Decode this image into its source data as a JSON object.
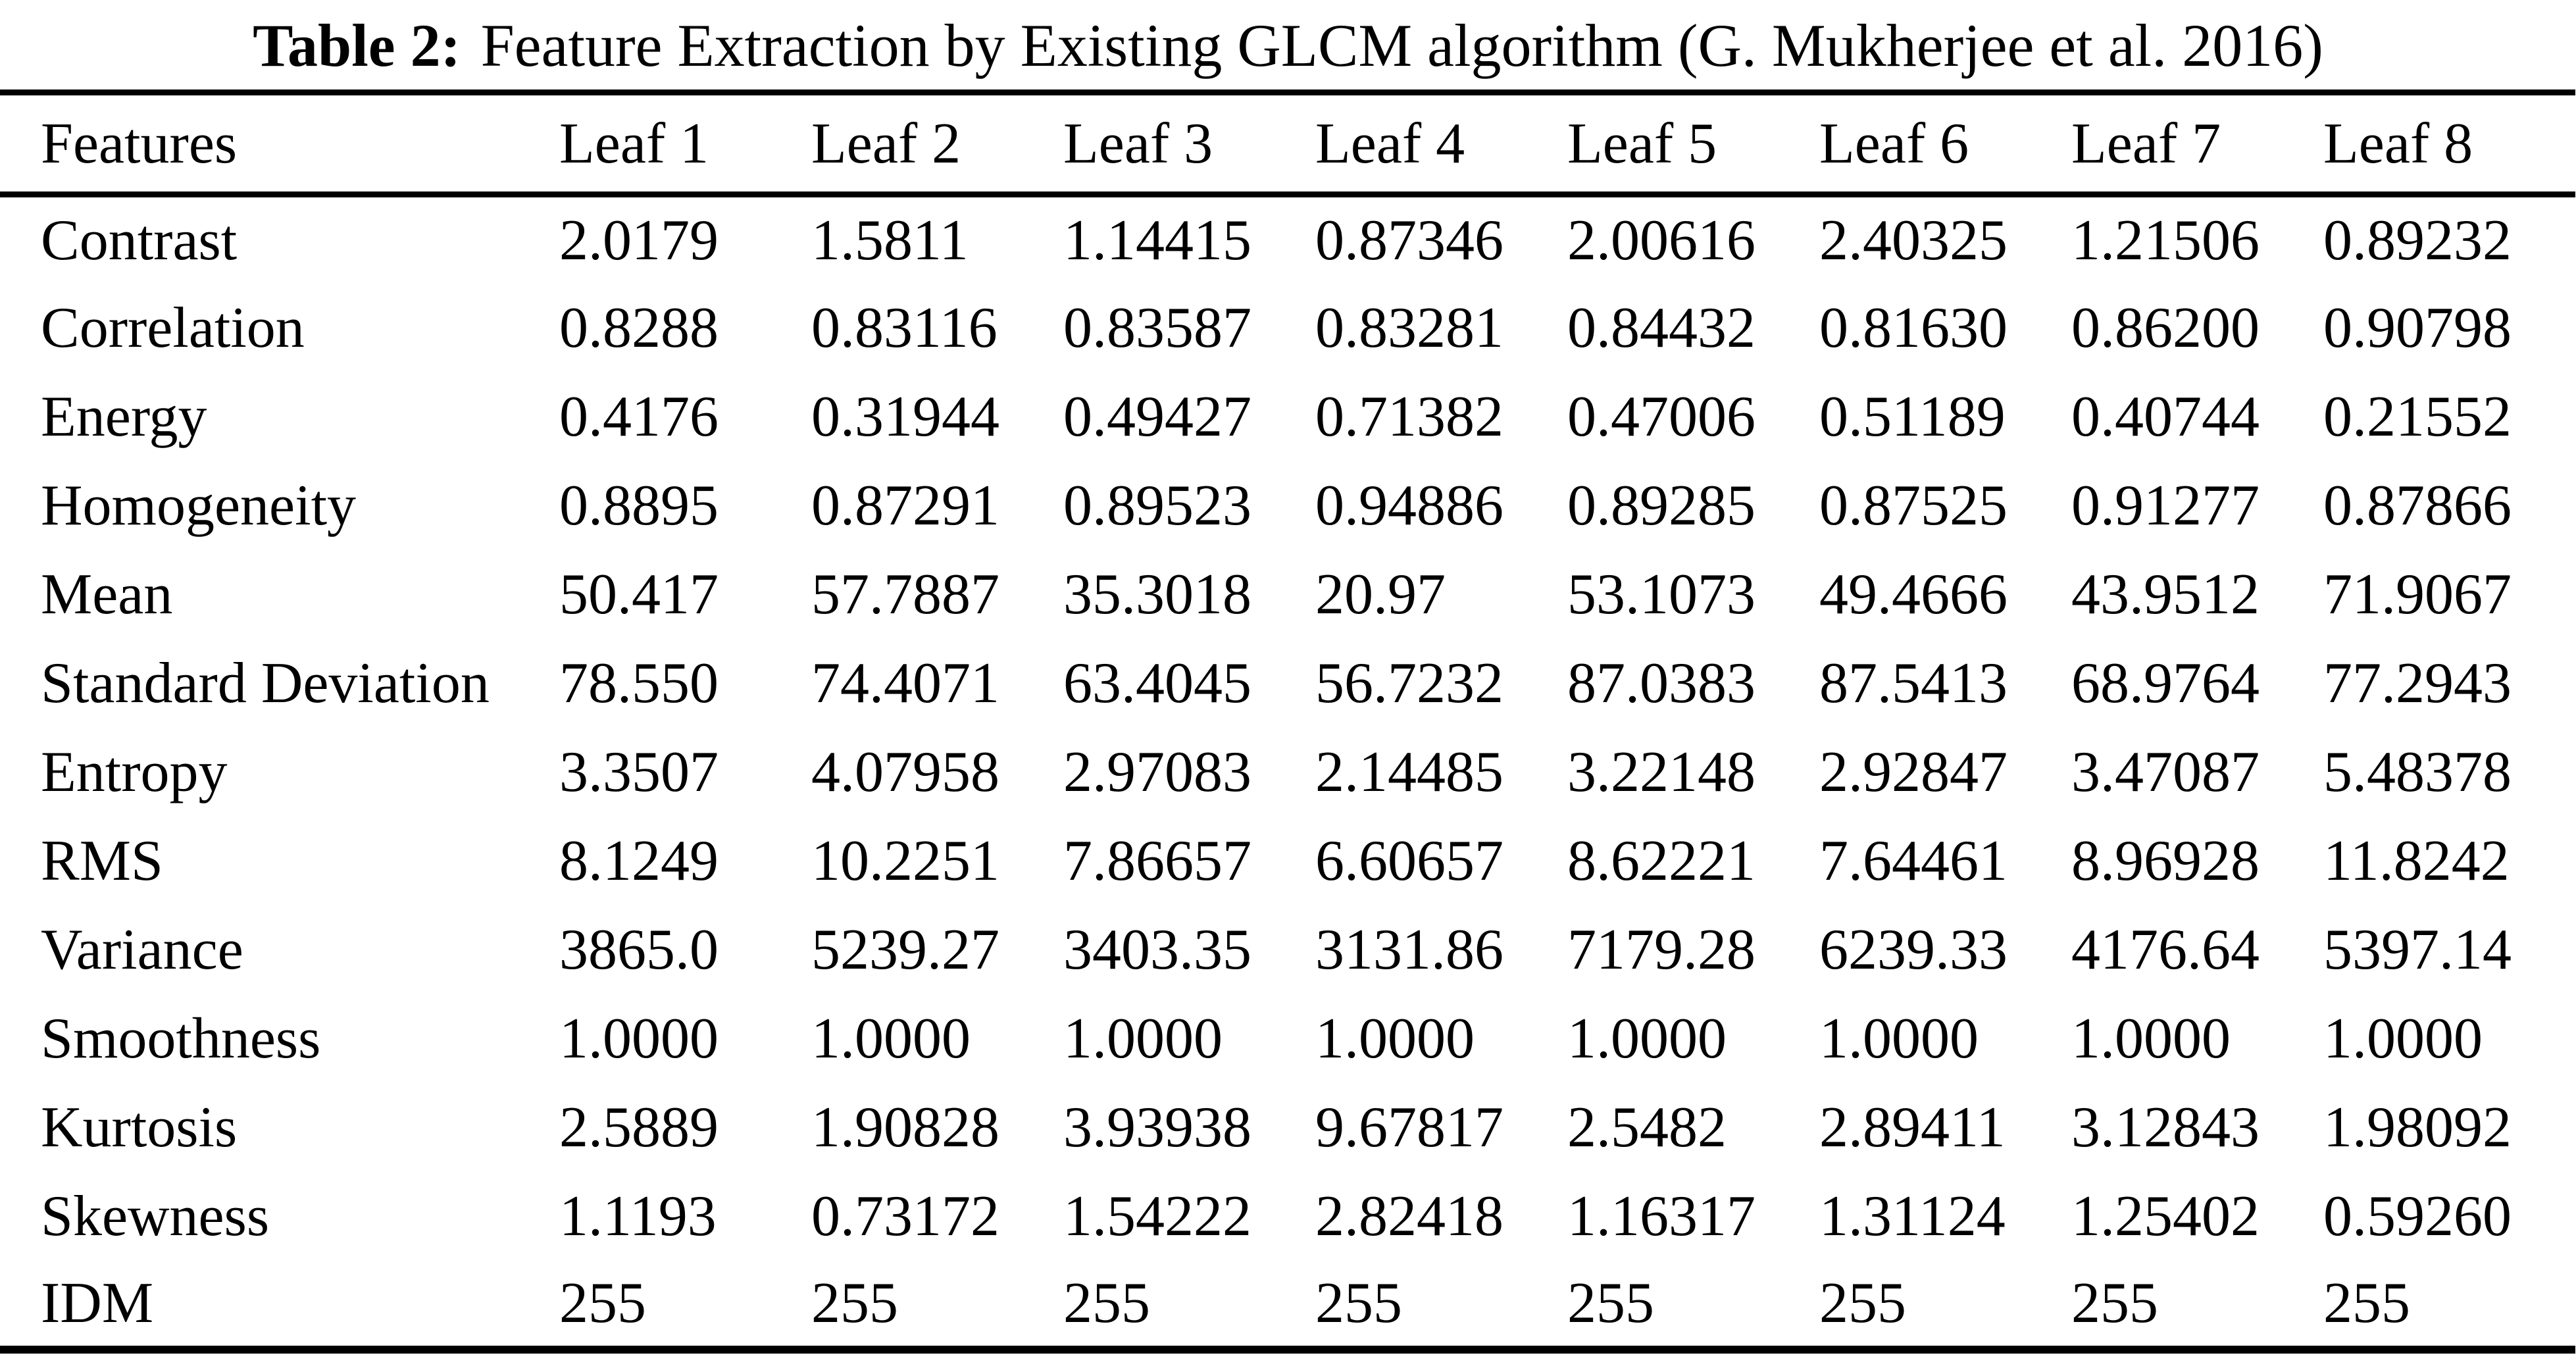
{
  "caption": {
    "label": "Table 2:",
    "text": "Feature Extraction by Existing GLCM algorithm (G. Mukherjee et al. 2016)"
  },
  "colors": {
    "text": "#000000",
    "background": "#ffffff",
    "rule": "#000000"
  },
  "table": {
    "columns": [
      "Features",
      "Leaf 1",
      "Leaf 2",
      "Leaf 3",
      "Leaf 4",
      "Leaf 5",
      "Leaf 6",
      "Leaf 7",
      "Leaf 8"
    ],
    "rows": [
      {
        "feature": "Contrast",
        "values": [
          "2.0179",
          "1.5811",
          "1.14415",
          "0.87346",
          "2.00616",
          "2.40325",
          "1.21506",
          "0.89232"
        ]
      },
      {
        "feature": "Correlation",
        "values": [
          "0.8288",
          "0.83116",
          "0.83587",
          "0.83281",
          "0.84432",
          "0.81630",
          "0.86200",
          "0.90798"
        ]
      },
      {
        "feature": "Energy",
        "values": [
          "0.4176",
          "0.31944",
          "0.49427",
          "0.71382",
          "0.47006",
          "0.51189",
          "0.40744",
          "0.21552"
        ]
      },
      {
        "feature": "Homogeneity",
        "values": [
          "0.8895",
          "0.87291",
          "0.89523",
          "0.94886",
          "0.89285",
          "0.87525",
          "0.91277",
          "0.87866"
        ]
      },
      {
        "feature": "Mean",
        "values": [
          "50.417",
          "57.7887",
          "35.3018",
          "20.97",
          "53.1073",
          "49.4666",
          "43.9512",
          "71.9067"
        ]
      },
      {
        "feature": "Standard Deviation",
        "values": [
          "78.550",
          "74.4071",
          "63.4045",
          "56.7232",
          "87.0383",
          "87.5413",
          "68.9764",
          "77.2943"
        ]
      },
      {
        "feature": "Entropy",
        "values": [
          "3.3507",
          "4.07958",
          "2.97083",
          "2.14485",
          "3.22148",
          "2.92847",
          "3.47087",
          "5.48378"
        ]
      },
      {
        "feature": "RMS",
        "values": [
          "8.1249",
          "10.2251",
          "7.86657",
          "6.60657",
          "8.62221",
          "7.64461",
          "8.96928",
          "11.8242"
        ]
      },
      {
        "feature": "Variance",
        "values": [
          "3865.0",
          "5239.27",
          "3403.35",
          "3131.86",
          "7179.28",
          "6239.33",
          "4176.64",
          "5397.14"
        ]
      },
      {
        "feature": "Smoothness",
        "values": [
          "1.0000",
          "1.0000",
          "1.0000",
          "1.0000",
          "1.0000",
          "1.0000",
          "1.0000",
          "1.0000"
        ]
      },
      {
        "feature": "Kurtosis",
        "values": [
          "2.5889",
          "1.90828",
          "3.93938",
          "9.67817",
          "2.5482",
          "2.89411",
          "3.12843",
          "1.98092"
        ]
      },
      {
        "feature": "Skewness",
        "values": [
          "1.1193",
          "0.73172",
          "1.54222",
          "2.82418",
          "1.16317",
          "1.31124",
          "1.25402",
          "0.59260"
        ]
      },
      {
        "feature": "IDM",
        "values": [
          "255",
          "255",
          "255",
          "255",
          "255",
          "255",
          "255",
          "255"
        ]
      }
    ]
  }
}
